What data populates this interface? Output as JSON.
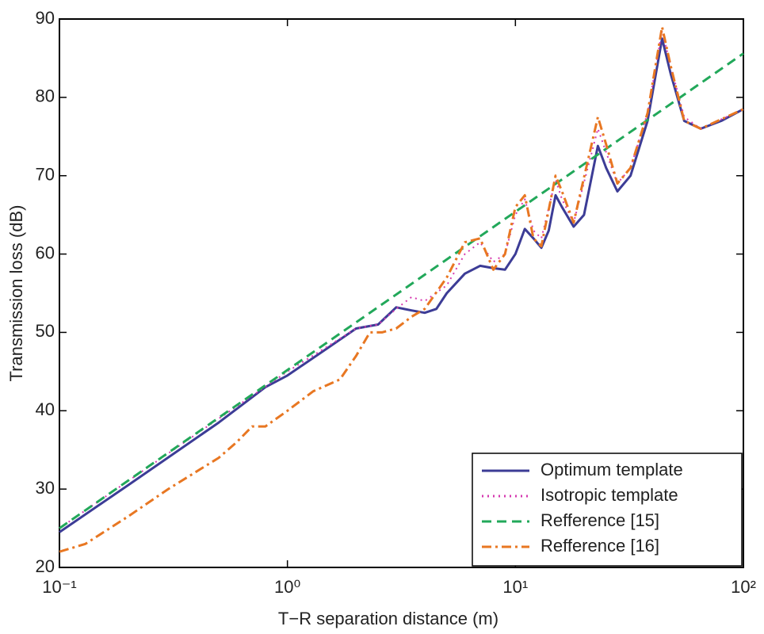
{
  "chart_data": {
    "type": "line",
    "xlabel": "T−R separation distance (m)",
    "ylabel": "Transmission loss (dB)",
    "xscale": "log",
    "xlim": [
      0.1,
      100
    ],
    "xticks": [
      {
        "value": 0.1,
        "label": "10⁻¹"
      },
      {
        "value": 1,
        "label": "10⁰"
      },
      {
        "value": 10,
        "label": "10¹"
      },
      {
        "value": 100,
        "label": "10²"
      }
    ],
    "ylim": [
      20,
      90
    ],
    "yticks": [
      20,
      30,
      40,
      50,
      60,
      70,
      80,
      90
    ],
    "legend": "lower right",
    "series": [
      {
        "name": "Optimum template",
        "color": "#3c3c96",
        "dash": "solid",
        "x": [
          0.1,
          0.2,
          0.5,
          0.8,
          1,
          1.5,
          2,
          2.5,
          3,
          3.5,
          4,
          4.5,
          5,
          6,
          7,
          8,
          9,
          10,
          11,
          12,
          13,
          14,
          15,
          16,
          18,
          20,
          23,
          25,
          28,
          32,
          38,
          44,
          48,
          55,
          65,
          80,
          100
        ],
        "values": [
          24.5,
          30.5,
          38.5,
          43,
          44.5,
          48,
          50.5,
          51,
          53.2,
          52.8,
          52.5,
          53,
          55,
          57.5,
          58.5,
          58.2,
          58,
          60,
          63.2,
          62,
          60.8,
          63,
          67.5,
          66,
          63.5,
          65,
          73.8,
          71,
          68,
          70,
          77,
          87.5,
          83,
          77,
          76,
          77,
          78.5
        ]
      },
      {
        "name": "Isotropic template",
        "color": "#d63ab0",
        "dash": "dotted",
        "x": [
          0.1,
          0.5,
          1,
          2,
          2.5,
          3,
          3.5,
          4,
          5,
          6,
          7,
          8,
          9,
          10,
          11,
          12,
          13,
          15,
          16,
          18,
          23,
          25,
          28,
          32,
          38,
          44,
          48,
          55,
          65,
          100
        ],
        "values": [
          25,
          39,
          45,
          50.5,
          51,
          53,
          54.5,
          54,
          56,
          60,
          61.5,
          59,
          60,
          65,
          67,
          63,
          62,
          69.5,
          67,
          64,
          76,
          73,
          69,
          71,
          78,
          88.5,
          84,
          77.5,
          76,
          78.5
        ]
      },
      {
        "name": "Refference [15]",
        "color": "#22a85a",
        "dash": "dashed",
        "x": [
          0.1,
          1,
          10,
          100
        ],
        "values": [
          25,
          45.2,
          65.4,
          85.6
        ]
      },
      {
        "name": "Refference [16]",
        "color": "#e87722",
        "dash": "dashdot",
        "x": [
          0.1,
          0.13,
          0.2,
          0.3,
          0.5,
          0.6,
          0.7,
          0.8,
          1,
          1.3,
          1.7,
          2,
          2.3,
          2.6,
          3,
          3.5,
          4,
          5,
          6,
          7,
          8,
          9,
          10,
          11,
          12,
          13,
          15,
          16,
          18,
          23,
          25,
          28,
          32,
          38,
          44,
          48,
          55,
          65,
          100
        ],
        "values": [
          22,
          23,
          26.5,
          30,
          34,
          36,
          38,
          38,
          40,
          42.5,
          44,
          47,
          50,
          50,
          50.5,
          52,
          53,
          57,
          61.5,
          62,
          58,
          60,
          66,
          67.5,
          62,
          61,
          70,
          68,
          64,
          77.5,
          74,
          69,
          71,
          78,
          89,
          84,
          77,
          76,
          78.5
        ]
      }
    ]
  }
}
